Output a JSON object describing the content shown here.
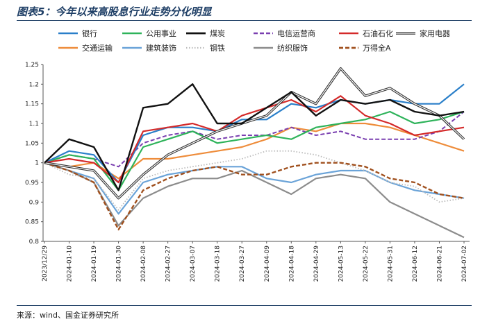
{
  "header": {
    "title": "图表5：今年以来高股息行业走势分化明显"
  },
  "footer": {
    "source": "来源：wind、国金证券研究所"
  },
  "chart_data": {
    "type": "line",
    "title": "图表5：今年以来高股息行业走势分化明显",
    "xlabel": "",
    "ylabel": "",
    "ylim": [
      0.8,
      1.25
    ],
    "yticks": [
      "1.25",
      "1.2",
      "1.15",
      "1.1",
      "1.05",
      "1",
      "0.95",
      "0.9",
      "0.85",
      "0.8"
    ],
    "categories": [
      "2023/12/29",
      "2024-01-10",
      "2024-01-19",
      "2024-01-30",
      "2024-02-08",
      "2024-02-27",
      "2024-03-07",
      "2024-03-18",
      "2024-03-27",
      "2024-04-09",
      "2024-04-18",
      "2024-04-29",
      "2024-05-13",
      "2024-05-22",
      "2024-05-31",
      "2024-06-12",
      "2024-06-21",
      "2024-07-02"
    ],
    "grid": false,
    "legend_position": "top",
    "series": [
      {
        "name": "银行",
        "color": "#2a7fc9",
        "style": "solid",
        "width": 2.2,
        "values": [
          1.0,
          1.03,
          1.02,
          0.95,
          1.07,
          1.09,
          1.09,
          1.08,
          1.11,
          1.11,
          1.15,
          1.14,
          1.16,
          1.15,
          1.16,
          1.15,
          1.15,
          1.2
        ]
      },
      {
        "name": "公用事业",
        "color": "#2eb35a",
        "style": "solid",
        "width": 2.2,
        "values": [
          1.0,
          1.02,
          1.01,
          0.93,
          1.04,
          1.06,
          1.08,
          1.05,
          1.06,
          1.07,
          1.06,
          1.09,
          1.1,
          1.11,
          1.13,
          1.1,
          1.11,
          1.13
        ]
      },
      {
        "name": "煤炭",
        "color": "#111111",
        "style": "solid",
        "width": 2.4,
        "values": [
          1.0,
          1.06,
          1.04,
          0.93,
          1.14,
          1.15,
          1.2,
          1.1,
          1.1,
          1.14,
          1.18,
          1.12,
          1.16,
          1.15,
          1.16,
          1.13,
          1.12,
          1.13
        ]
      },
      {
        "name": "电信运营商",
        "color": "#7a3fb0",
        "style": "dash",
        "width": 2.0,
        "values": [
          1.0,
          1.02,
          1.01,
          0.99,
          1.05,
          1.07,
          1.08,
          1.06,
          1.07,
          1.07,
          1.09,
          1.07,
          1.08,
          1.06,
          1.06,
          1.06,
          1.08,
          1.13
        ]
      },
      {
        "name": "石油石化",
        "color": "#d42a2a",
        "style": "solid",
        "width": 2.2,
        "values": [
          1.0,
          1.01,
          1.0,
          0.95,
          1.08,
          1.09,
          1.1,
          1.08,
          1.12,
          1.14,
          1.16,
          1.13,
          1.17,
          1.12,
          1.1,
          1.07,
          1.08,
          1.09
        ]
      },
      {
        "name": "家用电器",
        "color": "#888888",
        "style": "double",
        "width": 1.6,
        "values": [
          1.0,
          0.99,
          0.98,
          0.91,
          0.97,
          1.02,
          1.05,
          1.08,
          1.1,
          1.12,
          1.18,
          1.15,
          1.24,
          1.17,
          1.19,
          1.15,
          1.12,
          1.06
        ]
      },
      {
        "name": "交通运输",
        "color": "#ee8c3a",
        "style": "solid",
        "width": 2.2,
        "values": [
          1.0,
          0.99,
          1.0,
          0.96,
          1.01,
          1.01,
          1.02,
          1.03,
          1.04,
          1.06,
          1.09,
          1.08,
          1.1,
          1.1,
          1.09,
          1.07,
          1.05,
          1.03
        ]
      },
      {
        "name": "建筑装饰",
        "color": "#6aa3d8",
        "style": "solid",
        "width": 2.2,
        "values": [
          1.0,
          0.98,
          0.96,
          0.87,
          0.95,
          0.97,
          0.98,
          0.99,
          0.99,
          0.96,
          0.95,
          0.97,
          0.98,
          0.98,
          0.95,
          0.93,
          0.92,
          0.91
        ]
      },
      {
        "name": "钢铁",
        "color": "#bbbbbb",
        "style": "dot",
        "width": 1.8,
        "values": [
          1.0,
          0.97,
          0.96,
          0.88,
          0.96,
          0.98,
          0.99,
          1.0,
          1.01,
          1.03,
          1.03,
          1.02,
          1.0,
          0.98,
          0.95,
          0.94,
          0.9,
          0.91
        ]
      },
      {
        "name": "纺织服饰",
        "color": "#8c8c8c",
        "style": "solid",
        "width": 2.2,
        "values": [
          1.0,
          0.98,
          0.95,
          0.84,
          0.91,
          0.94,
          0.96,
          0.96,
          0.98,
          0.95,
          0.92,
          0.96,
          0.97,
          0.96,
          0.9,
          0.87,
          0.84,
          0.81
        ]
      },
      {
        "name": "万得全A",
        "color": "#a0501e",
        "style": "dash",
        "width": 2.4,
        "values": [
          1.0,
          0.98,
          0.95,
          0.83,
          0.93,
          0.96,
          0.98,
          0.99,
          0.97,
          0.97,
          0.99,
          1.0,
          1.0,
          0.99,
          0.96,
          0.95,
          0.92,
          0.91
        ]
      }
    ]
  }
}
